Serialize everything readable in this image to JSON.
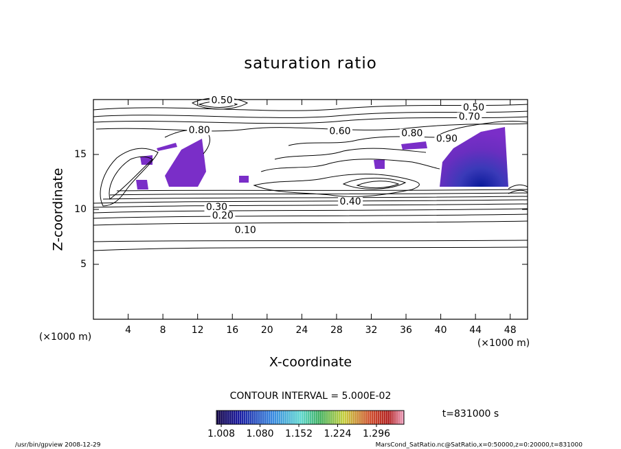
{
  "chart_data": {
    "type": "contour",
    "title": "saturation ratio",
    "x_label": "X-coordinate",
    "y_label": "Z-coordinate",
    "x_unit": "(×1000 m)",
    "y_unit": "(×1000 m)",
    "xlim": [
      0,
      50
    ],
    "ylim": [
      0,
      20
    ],
    "xticks": [
      4,
      8,
      12,
      16,
      20,
      24,
      28,
      32,
      36,
      40,
      44,
      48
    ],
    "yticks": [
      5,
      10,
      15
    ],
    "contour_interval": "CONTOUR INTERVAL = 5.000E-02",
    "contour_labels": [
      {
        "value": 0.5,
        "label": "0.50",
        "x": 14.8,
        "z": 19.9
      },
      {
        "value": 0.5,
        "label": "0.50",
        "x": 43.8,
        "z": 19.25
      },
      {
        "value": 0.7,
        "label": "0.70",
        "x": 43.3,
        "z": 18.4
      },
      {
        "value": 0.8,
        "label": "0.80",
        "x": 12.2,
        "z": 17.2
      },
      {
        "value": 0.6,
        "label": "0.60",
        "x": 28.4,
        "z": 17.1
      },
      {
        "value": 0.8,
        "label": "0.80",
        "x": 36.7,
        "z": 16.9
      },
      {
        "value": 0.9,
        "label": "0.90",
        "x": 40.7,
        "z": 16.4
      },
      {
        "value": 0.4,
        "label": "0.40",
        "x": 29.6,
        "z": 10.7
      },
      {
        "value": 0.3,
        "label": "0.30",
        "x": 14.2,
        "z": 10.2
      },
      {
        "value": 0.2,
        "label": "0.20",
        "x": 14.9,
        "z": 9.4
      },
      {
        "value": 0.1,
        "label": "0.10",
        "x": 17.5,
        "z": 8.1
      }
    ],
    "colorbar_lim": [
      0.999,
      1.347
    ],
    "colorbar_ticks": [
      {
        "value": 1.008,
        "label": "1.008"
      },
      {
        "value": 1.08,
        "label": "1.080"
      },
      {
        "value": 1.152,
        "label": "1.152"
      },
      {
        "value": 1.224,
        "label": "1.224"
      },
      {
        "value": 1.296,
        "label": "1.296"
      }
    ],
    "time_label": "t=831000 s",
    "footer_left": "/usr/bin/gpview  2008-12-29",
    "footer_right": "MarsCond_SatRatio.nc@SatRatio,x=0:50000,z=0:20000,t=831000"
  }
}
